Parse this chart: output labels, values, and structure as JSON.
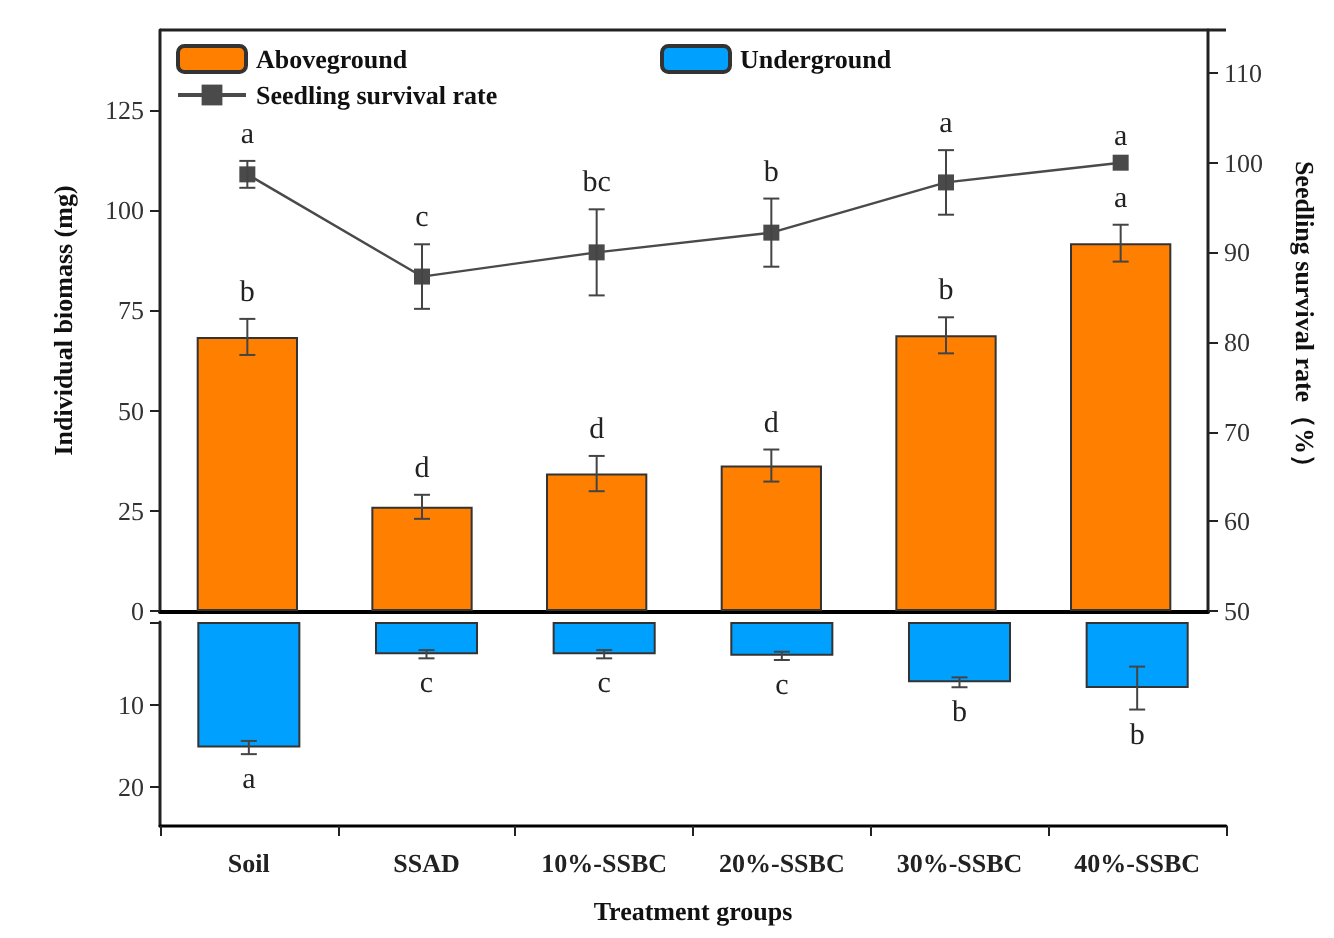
{
  "chart_data": [
    {
      "type": "bar",
      "categories": [
        null,
        null,
        null,
        null,
        null,
        null
      ],
      "series": [
        {
          "name": "Aboveground",
          "color": "#ff7f00",
          "values": [
            68.4,
            26.0,
            34.3,
            36.3,
            68.8,
            91.8
          ],
          "errors": [
            4.5,
            3,
            4.4,
            4,
            4.5,
            4.6
          ]
        },
        {
          "name": "Seedling survival rate",
          "type": "line",
          "axis": "y2",
          "color": "#4a4a4a",
          "values": [
            98.7,
            87.3,
            90.0,
            92.2,
            97.8,
            100.0
          ],
          "errors": [
            1.5,
            3.6,
            4.8,
            3.8,
            3.6,
            null
          ]
        }
      ],
      "ylim": [
        0,
        145
      ],
      "yticks": [
        0,
        25,
        50,
        75,
        100,
        125
      ],
      "y2lim": [
        50,
        114.8
      ],
      "y2ticks": [
        50,
        60,
        70,
        80,
        90,
        100,
        110
      ],
      "ylabel": "Individual biomass (mg)",
      "y2label": "Seedling survival rate（%）",
      "legend": "top",
      "marker": "square",
      "tick_labels": "y",
      "annotations": [
        "b",
        "d",
        "d",
        "d",
        "b",
        "a",
        "a",
        "c",
        "bc",
        "b",
        "a",
        "a"
      ]
    },
    {
      "type": "bar",
      "categories": [
        "Soil",
        "SSAD",
        "10%-SSBC",
        "20%-SSBC",
        "30%-SSBC",
        "40%-SSBC"
      ],
      "series": [
        {
          "name": "Underground",
          "color": "#00a0ff",
          "values": [
            15.2,
            3.9,
            3.9,
            4.1,
            7.3,
            8.0
          ],
          "errors": [
            0.8,
            0.5,
            0.5,
            0.5,
            0.6,
            2.6
          ]
        }
      ],
      "ylim": [
        24.7,
        0
      ],
      "yticks": [
        {
          "value": 0,
          "label": null
        },
        10,
        20
      ],
      "xlabel": "Treatment groups",
      "legend": "top",
      "annotations": [
        "a",
        "c",
        "c",
        "c",
        "b",
        "b"
      ]
    }
  ]
}
